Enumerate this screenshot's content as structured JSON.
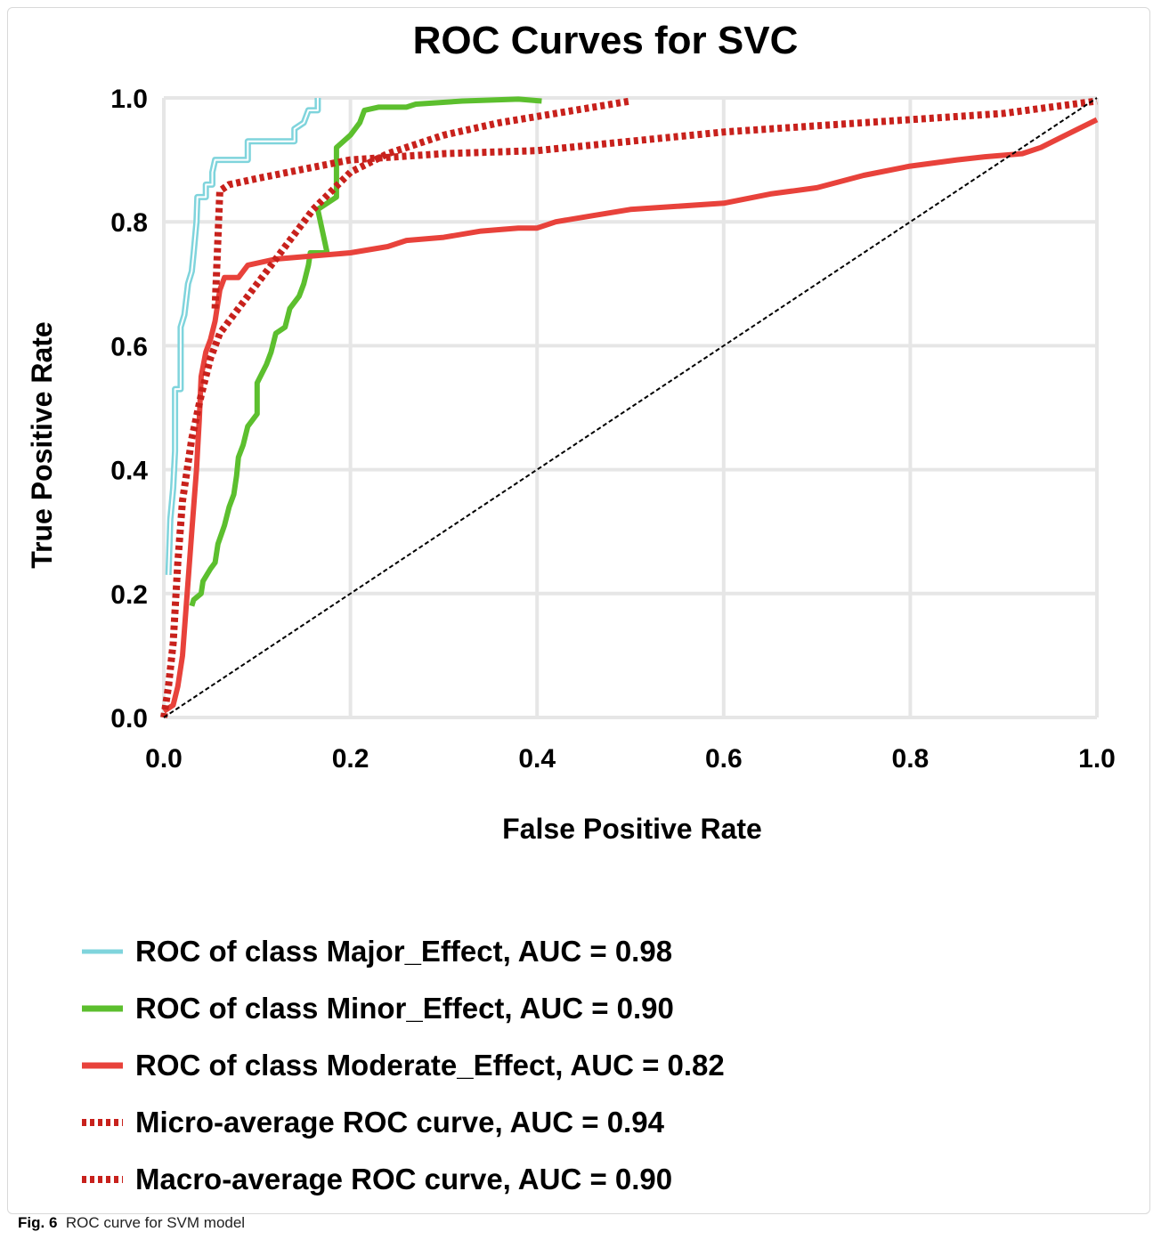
{
  "chart_data": {
    "type": "line",
    "title": "ROC Curves for SVC",
    "xlabel": "False Positive Rate",
    "ylabel": "True Positive Rate",
    "xlim": [
      0.0,
      1.0
    ],
    "ylim": [
      0.0,
      1.0
    ],
    "xticks": [
      "0.0",
      "0.2",
      "0.4",
      "0.6",
      "0.8",
      "1.0"
    ],
    "yticks": [
      "0.0",
      "0.2",
      "0.4",
      "0.6",
      "0.8",
      "1.0"
    ],
    "grid": true,
    "legend_position": "bottom",
    "series": [
      {
        "name": "ROC of class Major_Effect, AUC = 0.98",
        "color": "#7fd4dc",
        "style": "double-solid",
        "points": [
          [
            0.005,
            0.23
          ],
          [
            0.007,
            0.32
          ],
          [
            0.01,
            0.37
          ],
          [
            0.012,
            0.43
          ],
          [
            0.012,
            0.53
          ],
          [
            0.018,
            0.53
          ],
          [
            0.018,
            0.63
          ],
          [
            0.022,
            0.65
          ],
          [
            0.026,
            0.7
          ],
          [
            0.03,
            0.72
          ],
          [
            0.032,
            0.75
          ],
          [
            0.035,
            0.8
          ],
          [
            0.036,
            0.84
          ],
          [
            0.045,
            0.84
          ],
          [
            0.045,
            0.86
          ],
          [
            0.052,
            0.86
          ],
          [
            0.052,
            0.88
          ],
          [
            0.055,
            0.9
          ],
          [
            0.09,
            0.9
          ],
          [
            0.09,
            0.93
          ],
          [
            0.14,
            0.93
          ],
          [
            0.14,
            0.95
          ],
          [
            0.15,
            0.96
          ],
          [
            0.155,
            0.98
          ],
          [
            0.165,
            0.98
          ],
          [
            0.165,
            1.0
          ]
        ]
      },
      {
        "name": "ROC of class Minor_Effect, AUC = 0.90",
        "color": "#5cbf2e",
        "style": "solid",
        "points": [
          [
            0.03,
            0.18
          ],
          [
            0.032,
            0.19
          ],
          [
            0.04,
            0.2
          ],
          [
            0.042,
            0.22
          ],
          [
            0.05,
            0.24
          ],
          [
            0.055,
            0.25
          ],
          [
            0.058,
            0.28
          ],
          [
            0.065,
            0.31
          ],
          [
            0.07,
            0.34
          ],
          [
            0.075,
            0.36
          ],
          [
            0.078,
            0.39
          ],
          [
            0.08,
            0.42
          ],
          [
            0.085,
            0.44
          ],
          [
            0.09,
            0.47
          ],
          [
            0.1,
            0.49
          ],
          [
            0.1,
            0.54
          ],
          [
            0.11,
            0.57
          ],
          [
            0.115,
            0.59
          ],
          [
            0.12,
            0.62
          ],
          [
            0.13,
            0.63
          ],
          [
            0.135,
            0.66
          ],
          [
            0.145,
            0.68
          ],
          [
            0.15,
            0.7
          ],
          [
            0.155,
            0.73
          ],
          [
            0.157,
            0.75
          ],
          [
            0.175,
            0.75
          ],
          [
            0.165,
            0.82
          ],
          [
            0.185,
            0.84
          ],
          [
            0.185,
            0.92
          ],
          [
            0.2,
            0.94
          ],
          [
            0.21,
            0.96
          ],
          [
            0.215,
            0.98
          ],
          [
            0.23,
            0.985
          ],
          [
            0.26,
            0.985
          ],
          [
            0.27,
            0.99
          ],
          [
            0.32,
            0.995
          ],
          [
            0.38,
            0.998
          ],
          [
            0.405,
            0.995
          ]
        ]
      },
      {
        "name": "ROC of class Moderate_Effect, AUC = 0.82",
        "color": "#e8423b",
        "style": "solid",
        "points": [
          [
            0.0,
            0.01
          ],
          [
            0.01,
            0.02
          ],
          [
            0.015,
            0.05
          ],
          [
            0.02,
            0.1
          ],
          [
            0.025,
            0.2
          ],
          [
            0.03,
            0.3
          ],
          [
            0.035,
            0.4
          ],
          [
            0.038,
            0.48
          ],
          [
            0.04,
            0.55
          ],
          [
            0.045,
            0.59
          ],
          [
            0.05,
            0.61
          ],
          [
            0.055,
            0.64
          ],
          [
            0.06,
            0.69
          ],
          [
            0.065,
            0.71
          ],
          [
            0.08,
            0.71
          ],
          [
            0.09,
            0.73
          ],
          [
            0.12,
            0.74
          ],
          [
            0.16,
            0.745
          ],
          [
            0.2,
            0.75
          ],
          [
            0.24,
            0.76
          ],
          [
            0.26,
            0.77
          ],
          [
            0.3,
            0.775
          ],
          [
            0.34,
            0.785
          ],
          [
            0.38,
            0.79
          ],
          [
            0.4,
            0.79
          ],
          [
            0.42,
            0.8
          ],
          [
            0.46,
            0.81
          ],
          [
            0.5,
            0.82
          ],
          [
            0.55,
            0.825
          ],
          [
            0.6,
            0.83
          ],
          [
            0.65,
            0.845
          ],
          [
            0.7,
            0.855
          ],
          [
            0.75,
            0.875
          ],
          [
            0.8,
            0.89
          ],
          [
            0.85,
            0.9
          ],
          [
            0.88,
            0.905
          ],
          [
            0.92,
            0.91
          ],
          [
            0.94,
            0.92
          ],
          [
            0.96,
            0.935
          ],
          [
            0.98,
            0.95
          ],
          [
            1.0,
            0.965
          ]
        ]
      },
      {
        "name": "Micro-average ROC curve, AUC = 0.94",
        "color": "#c8211c",
        "style": "dotted-thick",
        "points": [
          [
            0.0,
            0.0
          ],
          [
            0.005,
            0.05
          ],
          [
            0.01,
            0.12
          ],
          [
            0.015,
            0.25
          ],
          [
            0.02,
            0.35
          ],
          [
            0.03,
            0.45
          ],
          [
            0.04,
            0.52
          ],
          [
            0.05,
            0.58
          ],
          [
            0.06,
            0.62
          ],
          [
            0.08,
            0.66
          ],
          [
            0.1,
            0.7
          ],
          [
            0.12,
            0.74
          ],
          [
            0.14,
            0.78
          ],
          [
            0.16,
            0.82
          ],
          [
            0.18,
            0.85
          ],
          [
            0.2,
            0.88
          ],
          [
            0.24,
            0.91
          ],
          [
            0.3,
            0.94
          ],
          [
            0.36,
            0.96
          ],
          [
            0.42,
            0.975
          ],
          [
            0.48,
            0.99
          ],
          [
            0.5,
            0.995
          ]
        ]
      },
      {
        "name": "Macro-average ROC curve, AUC = 0.90",
        "color": "#c8211c",
        "style": "dotted-thick",
        "points": [
          [
            0.055,
            0.66
          ],
          [
            0.06,
            0.85
          ],
          [
            0.07,
            0.86
          ],
          [
            0.1,
            0.87
          ],
          [
            0.15,
            0.885
          ],
          [
            0.2,
            0.9
          ],
          [
            0.3,
            0.91
          ],
          [
            0.4,
            0.915
          ],
          [
            0.5,
            0.93
          ],
          [
            0.6,
            0.945
          ],
          [
            0.7,
            0.955
          ],
          [
            0.8,
            0.965
          ],
          [
            0.9,
            0.975
          ],
          [
            0.95,
            0.985
          ],
          [
            1.0,
            0.995
          ]
        ]
      },
      {
        "name": "",
        "color": "#000000",
        "style": "diagonal-dashed",
        "points": [
          [
            0.0,
            0.0
          ],
          [
            1.0,
            1.0
          ]
        ]
      }
    ]
  },
  "caption": {
    "label": "Fig. 6",
    "text": "ROC curve for SVM model"
  }
}
